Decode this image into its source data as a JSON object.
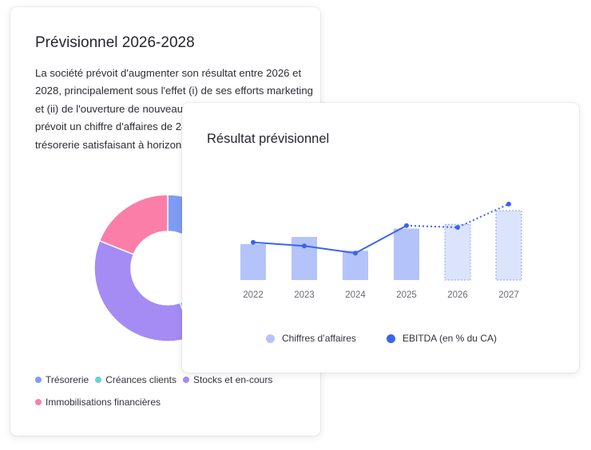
{
  "back_card": {
    "title": "Prévisionnel 2026-2028",
    "description": "La société prévoit d'augmenter son résultat entre 2026 et 2028, principalement sous l'effet (i) de ses efforts marketing et (ii) de l'ouverture de nouveaux bureaux. La société prévoit un chiffre d'affaires de 245 000€ et un niveau de trésorerie satisfaisant à horizon 2028."
  },
  "front_card": {
    "title": "Résultat prévisionnel"
  },
  "chart_data": [
    {
      "type": "pie",
      "variant": "donut",
      "title": "",
      "legend_position": "bottom",
      "slices": [
        {
          "name": "Trésorerie",
          "value": 6,
          "color": "#7f9cf5"
        },
        {
          "name": "Créances clients",
          "value": 27,
          "color": "#67d1d0"
        },
        {
          "name": "Stocks et en-cours",
          "value": 27,
          "color": "#a48cf4"
        },
        {
          "name": "Immobilisations financières",
          "value": 14,
          "color": "#fb7ea8"
        }
      ]
    },
    {
      "type": "bar",
      "title": "Résultat prévisionnel",
      "legend_position": "bottom",
      "grid": false,
      "categories": [
        "2022",
        "2023",
        "2024",
        "2025",
        "2026",
        "2027"
      ],
      "series": [
        {
          "name": "Chiffres d’affaires",
          "type": "bar",
          "color": "#b4c4fa",
          "values": [
            60,
            72,
            49,
            86,
            93,
            116
          ],
          "projected_from_index": 4
        },
        {
          "name": "EBITDA (en % du CA)",
          "type": "line",
          "color": "#3b63ee",
          "values": [
            63,
            57,
            45,
            91,
            88,
            127
          ],
          "projected_from_index": 3
        }
      ]
    }
  ]
}
